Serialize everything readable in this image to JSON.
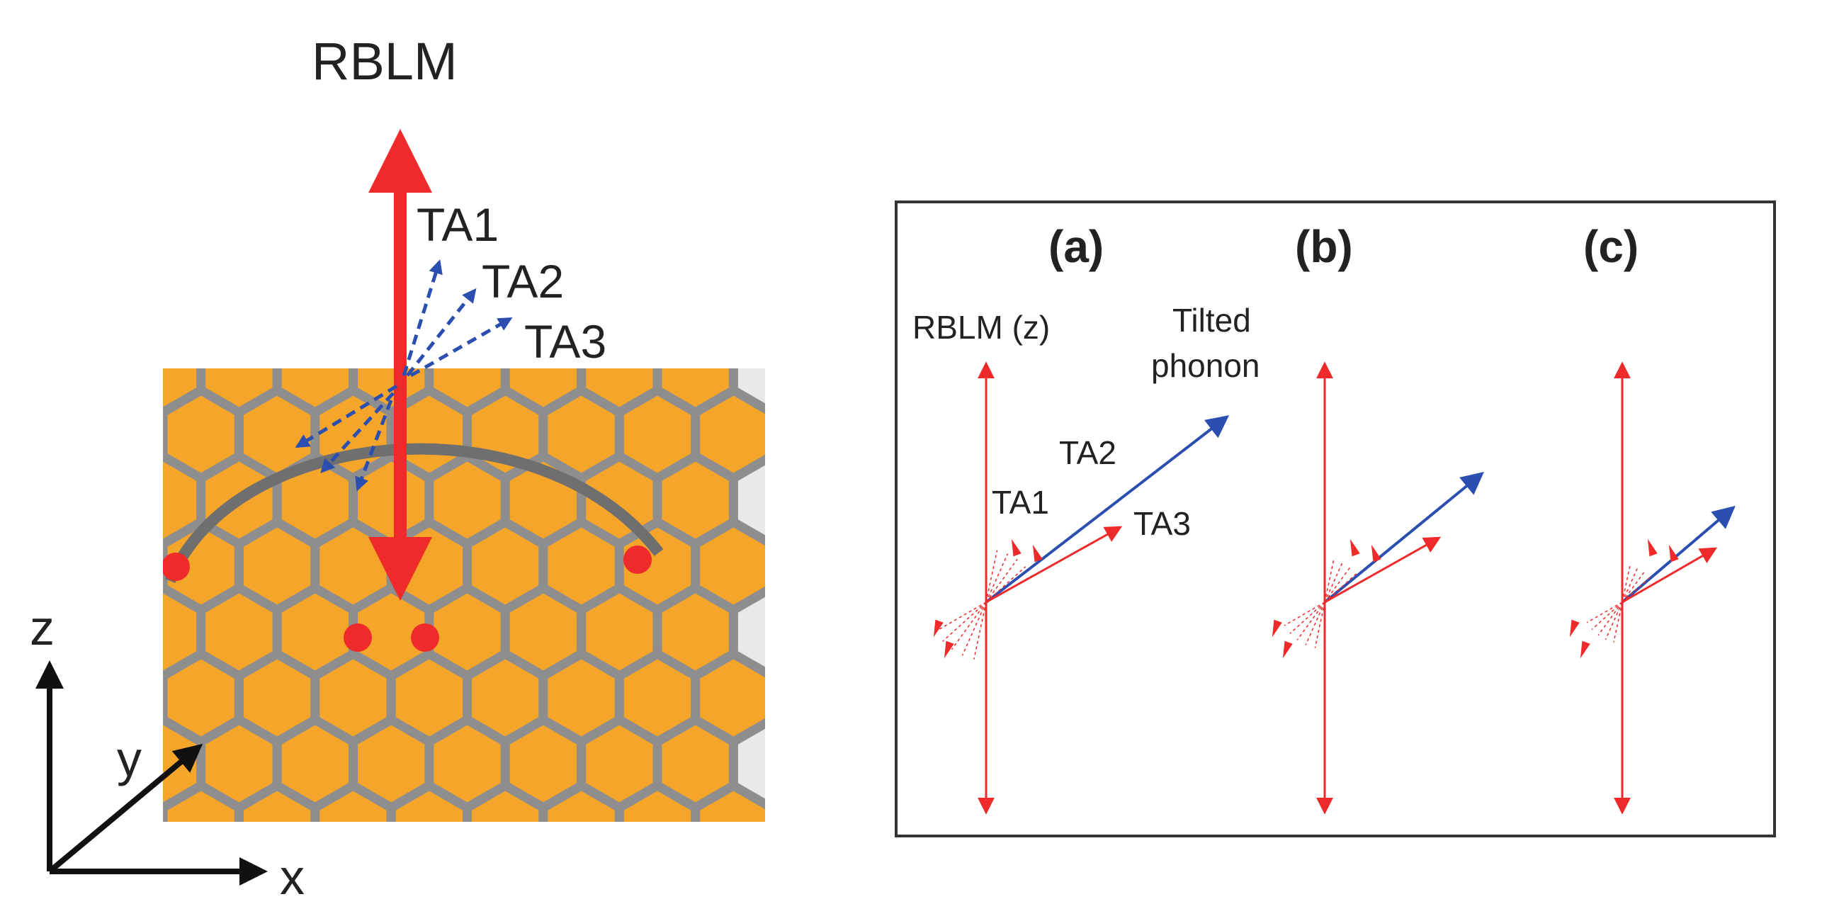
{
  "left_panel": {
    "rblm_label": "RBLM",
    "ta1_label": "TA1",
    "ta2_label": "TA2",
    "ta3_label": "TA3",
    "axis_z": "z",
    "axis_y": "y",
    "axis_x": "x"
  },
  "right_panel": {
    "panels": [
      {
        "label": "(a)"
      },
      {
        "label": "(b)"
      },
      {
        "label": "(c)"
      }
    ],
    "rblm_z_label": "RBLM (z)",
    "tilted_line1": "Tilted",
    "tilted_line2": "phonon",
    "ta1_label": "TA1",
    "ta2_label": "TA2",
    "ta3_label": "TA3"
  },
  "colors": {
    "red": "#ee2a2a",
    "blue": "#2b4fb0",
    "orange": "#f6a52b",
    "lattice_gray": "#8e8e8e",
    "frame": "#333333",
    "text": "#222222"
  }
}
